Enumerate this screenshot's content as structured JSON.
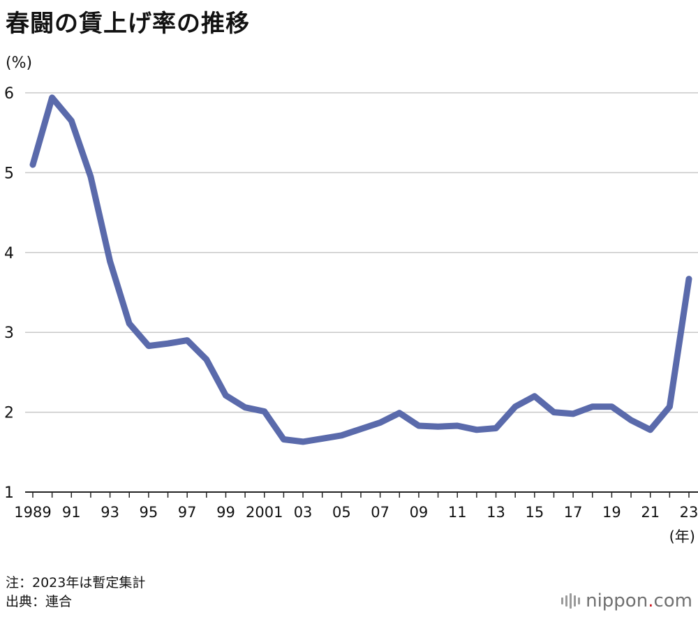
{
  "title": "春闘の賃上げ率の推移",
  "unit_label": "(%)",
  "year_unit": "(年)",
  "notes": {
    "note": "注：2023年は暫定集計",
    "source": "出典：連合"
  },
  "logo": {
    "name": "nippon",
    "dot": ".",
    "suffix": "com"
  },
  "colors": {
    "line": "#5a6aab",
    "grid": "#c8c8c8",
    "axis": "#222222",
    "logo_dot": "#d01c24"
  },
  "chart_data": {
    "type": "line",
    "title": "春闘の賃上げ率の推移",
    "ylabel": "(%)",
    "xlabel": "(年)",
    "ylim": [
      1,
      6
    ],
    "yticks": [
      1,
      2,
      3,
      4,
      5,
      6
    ],
    "grid": true,
    "x": [
      1989,
      1990,
      1991,
      1992,
      1993,
      1994,
      1995,
      1996,
      1997,
      1998,
      1999,
      2000,
      2001,
      2002,
      2003,
      2004,
      2005,
      2006,
      2007,
      2008,
      2009,
      2010,
      2011,
      2012,
      2013,
      2014,
      2015,
      2016,
      2017,
      2018,
      2019,
      2020,
      2021,
      2022,
      2023
    ],
    "xtick_labels": [
      {
        "year": 1989,
        "label": "1989"
      },
      {
        "year": 1991,
        "label": "91"
      },
      {
        "year": 1993,
        "label": "93"
      },
      {
        "year": 1995,
        "label": "95"
      },
      {
        "year": 1997,
        "label": "97"
      },
      {
        "year": 1999,
        "label": "99"
      },
      {
        "year": 2001,
        "label": "2001"
      },
      {
        "year": 2003,
        "label": "03"
      },
      {
        "year": 2005,
        "label": "05"
      },
      {
        "year": 2007,
        "label": "07"
      },
      {
        "year": 2009,
        "label": "09"
      },
      {
        "year": 2011,
        "label": "11"
      },
      {
        "year": 2013,
        "label": "13"
      },
      {
        "year": 2015,
        "label": "15"
      },
      {
        "year": 2017,
        "label": "17"
      },
      {
        "year": 2019,
        "label": "19"
      },
      {
        "year": 2021,
        "label": "21"
      },
      {
        "year": 2023,
        "label": "23"
      }
    ],
    "series": [
      {
        "values": [
          5.1,
          5.94,
          5.65,
          4.95,
          3.89,
          3.11,
          2.83,
          2.86,
          2.9,
          2.66,
          2.21,
          2.06,
          2.01,
          1.66,
          1.63,
          1.67,
          1.71,
          1.79,
          1.87,
          1.99,
          1.83,
          1.82,
          1.83,
          1.78,
          1.8,
          2.07,
          2.2,
          2.0,
          1.98,
          2.07,
          2.07,
          1.9,
          1.78,
          2.07,
          3.67
        ]
      }
    ]
  }
}
